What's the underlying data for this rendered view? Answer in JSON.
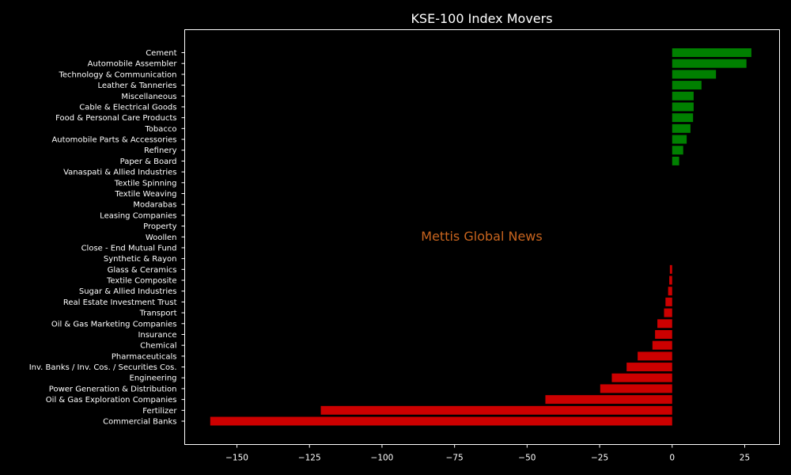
{
  "chart_data": {
    "type": "bar",
    "orientation": "horizontal",
    "title": "KSE-100 Index Movers",
    "watermark": "Mettis Global News",
    "xlabel": "",
    "ylabel": "",
    "xlim": [
      -168,
      37
    ],
    "xticks": [
      -150,
      -125,
      -100,
      -75,
      -50,
      -25,
      0,
      25
    ],
    "xtick_labels": [
      "−150",
      "−125",
      "−100",
      "−75",
      "−50",
      "−25",
      "0",
      "25"
    ],
    "grid": false,
    "colors": {
      "positive": "#008000",
      "negative": "#cc0000",
      "background": "#000000",
      "axes": "#ffffff",
      "watermark": "#c8641e"
    },
    "categories": [
      "Cement",
      "Automobile Assembler",
      "Technology & Communication",
      "Leather & Tanneries",
      "Miscellaneous",
      "Cable & Electrical Goods",
      "Food & Personal Care Products",
      "Tobacco",
      "Automobile Parts & Accessories",
      "Refinery",
      "Paper & Board",
      "Vanaspati & Allied Industries",
      "Textile Spinning",
      "Textile Weaving",
      "Modarabas",
      "Leasing Companies",
      "Property",
      "Woollen",
      "Close - End Mutual Fund",
      "Synthetic & Rayon",
      "Glass & Ceramics",
      "Textile Composite",
      "Sugar & Allied Industries",
      "Real Estate Investment Trust",
      "Transport",
      "Oil & Gas Marketing Companies",
      "Insurance",
      "Chemical",
      "Pharmaceuticals",
      "Inv. Banks / Inv. Cos. / Securities Cos.",
      "Engineering",
      "Power Generation & Distribution",
      "Oil & Gas Exploration Companies",
      "Fertilizer",
      "Commercial Banks"
    ],
    "values": [
      27.3,
      25.6,
      15.1,
      10.1,
      7.4,
      7.4,
      7.2,
      6.3,
      5.0,
      3.8,
      2.4,
      0,
      0,
      0,
      0,
      0,
      0,
      0,
      0,
      0,
      -0.8,
      -1.0,
      -1.4,
      -2.3,
      -2.8,
      -5.1,
      -5.9,
      -6.8,
      -11.9,
      -15.7,
      -20.8,
      -24.8,
      -43.7,
      -121.1,
      -159.2
    ]
  }
}
